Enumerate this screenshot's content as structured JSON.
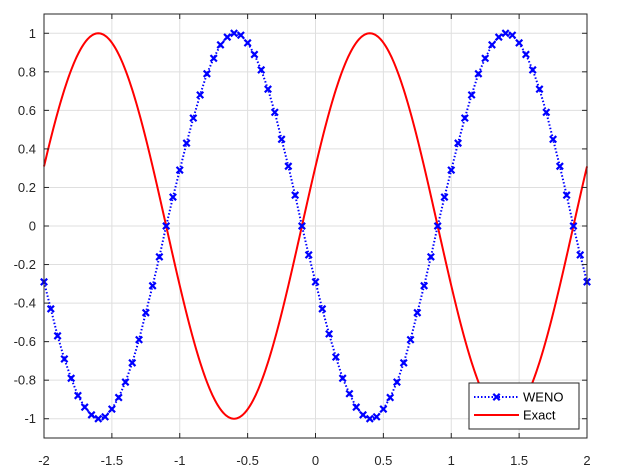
{
  "chart_data": {
    "type": "line",
    "title": "",
    "xlabel": "",
    "ylabel": "",
    "xlim": [
      -2,
      2
    ],
    "ylim": [
      -1.1,
      1.1
    ],
    "grid": true,
    "legend_position": "bottom-right",
    "x_ticks": [
      "-2",
      "-1.5",
      "-1",
      "-0.5",
      "0",
      "0.5",
      "1",
      "1.5",
      "2"
    ],
    "x_tick_values": [
      -2,
      -1.5,
      -1,
      -0.5,
      0,
      0.5,
      1,
      1.5,
      2
    ],
    "y_ticks": [
      "1",
      "0.8",
      "0.6",
      "0.4",
      "0.2",
      "0",
      "-0.2",
      "-0.4",
      "-0.6",
      "-0.8",
      "-1"
    ],
    "y_tick_values": [
      1,
      0.8,
      0.6,
      0.4,
      0.2,
      0,
      -0.2,
      -0.4,
      -0.6,
      -0.8,
      -1
    ],
    "series": [
      {
        "name": "WENO",
        "color": "#0000ff",
        "line_style": "dotted",
        "marker": "x",
        "x": [
          -2.0,
          -1.95,
          -1.9,
          -1.85,
          -1.8,
          -1.75,
          -1.7,
          -1.65,
          -1.6,
          -1.55,
          -1.5,
          -1.45,
          -1.4,
          -1.35,
          -1.3,
          -1.25,
          -1.2,
          -1.15,
          -1.1,
          -1.05,
          -1.0,
          -0.95,
          -0.9,
          -0.85,
          -0.8,
          -0.75,
          -0.7,
          -0.65,
          -0.6,
          -0.55,
          -0.5,
          -0.45,
          -0.4,
          -0.35,
          -0.3,
          -0.25,
          -0.2,
          -0.15,
          -0.1,
          -0.05,
          0.0,
          0.05,
          0.1,
          0.15,
          0.2,
          0.25,
          0.3,
          0.35,
          0.4,
          0.45,
          0.5,
          0.55,
          0.6,
          0.65,
          0.7,
          0.75,
          0.8,
          0.85,
          0.9,
          0.95,
          1.0,
          1.05,
          1.1,
          1.15,
          1.2,
          1.25,
          1.3,
          1.35,
          1.4,
          1.45,
          1.5,
          1.55,
          1.6,
          1.65,
          1.7,
          1.75,
          1.8,
          1.85,
          1.9,
          1.95,
          2.0
        ],
        "y": [
          -0.29,
          -0.43,
          -0.57,
          -0.69,
          -0.79,
          -0.88,
          -0.94,
          -0.98,
          -1.0,
          -0.99,
          -0.95,
          -0.89,
          -0.81,
          -0.71,
          -0.59,
          -0.45,
          -0.31,
          -0.16,
          0.0,
          0.15,
          0.29,
          0.43,
          0.56,
          0.68,
          0.79,
          0.87,
          0.94,
          0.98,
          1.0,
          0.99,
          0.95,
          0.89,
          0.81,
          0.71,
          0.59,
          0.45,
          0.31,
          0.16,
          0.0,
          -0.15,
          -0.29,
          -0.43,
          -0.56,
          -0.68,
          -0.79,
          -0.87,
          -0.94,
          -0.98,
          -1.0,
          -0.99,
          -0.95,
          -0.89,
          -0.81,
          -0.71,
          -0.59,
          -0.45,
          -0.31,
          -0.16,
          0.0,
          0.15,
          0.29,
          0.43,
          0.56,
          0.68,
          0.79,
          0.87,
          0.94,
          0.98,
          1.0,
          0.99,
          0.95,
          0.89,
          0.81,
          0.71,
          0.59,
          0.45,
          0.31,
          0.16,
          0.0,
          -0.15,
          -0.29
        ]
      },
      {
        "name": "Exact",
        "color": "#ff0000",
        "line_style": "solid",
        "marker": "none",
        "function": "sin(pi*(x+0.1))",
        "x_range": [
          -2,
          2
        ]
      }
    ]
  }
}
